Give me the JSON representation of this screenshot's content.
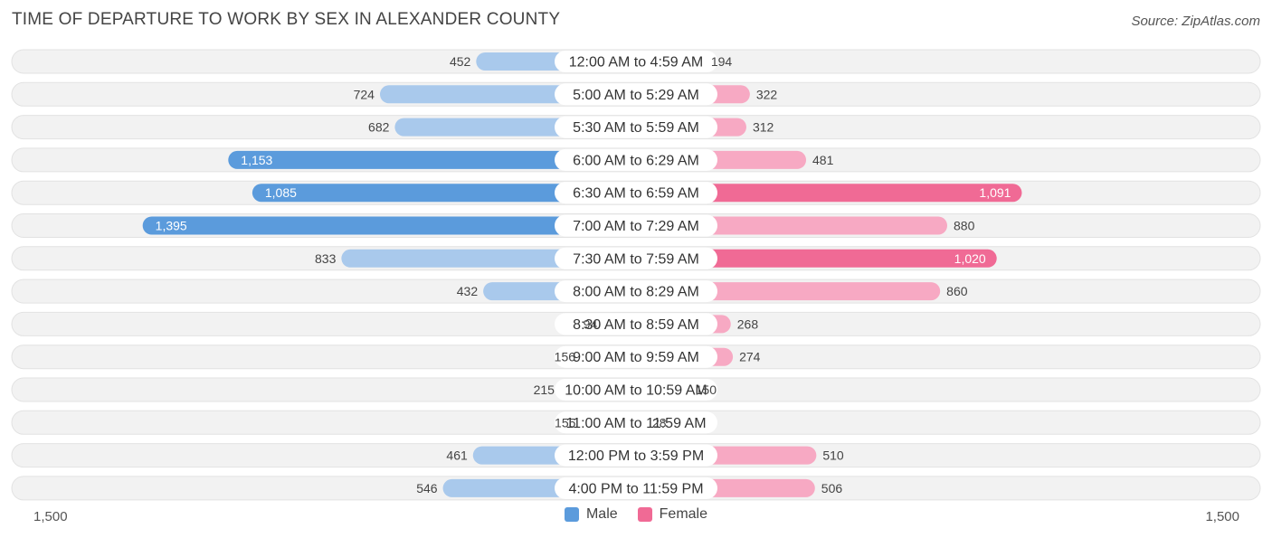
{
  "chart_data": {
    "type": "bar",
    "orientation": "horizontal-diverging",
    "title": "TIME OF DEPARTURE TO WORK BY SEX IN ALEXANDER COUNTY",
    "source": "Source: ZipAtlas.com",
    "categories": [
      "12:00 AM to 4:59 AM",
      "5:00 AM to 5:29 AM",
      "5:30 AM to 5:59 AM",
      "6:00 AM to 6:29 AM",
      "6:30 AM to 6:59 AM",
      "7:00 AM to 7:29 AM",
      "7:30 AM to 7:59 AM",
      "8:00 AM to 8:29 AM",
      "8:30 AM to 8:59 AM",
      "9:00 AM to 9:59 AM",
      "10:00 AM to 10:59 AM",
      "11:00 AM to 11:59 AM",
      "12:00 PM to 3:59 PM",
      "4:00 PM to 11:59 PM"
    ],
    "series": [
      {
        "name": "Male",
        "values": [
          452,
          724,
          682,
          1153,
          1085,
          1395,
          833,
          432,
          94,
          156,
          215,
          155,
          461,
          546
        ]
      },
      {
        "name": "Female",
        "values": [
          194,
          322,
          312,
          481,
          1091,
          880,
          1020,
          860,
          268,
          274,
          150,
          28,
          510,
          506
        ]
      }
    ],
    "value_labels": {
      "Male": [
        "452",
        "724",
        "682",
        "1,153",
        "1,085",
        "1,395",
        "833",
        "432",
        "94",
        "156",
        "215",
        "155",
        "461",
        "546"
      ],
      "Female": [
        "194",
        "322",
        "312",
        "481",
        "1,091",
        "880",
        "1,020",
        "860",
        "268",
        "274",
        "150",
        "28",
        "510",
        "506"
      ]
    },
    "axis": {
      "max": 1500,
      "left_tick_label": "1,500",
      "right_tick_label": "1,500"
    },
    "legend": {
      "position": "bottom-center",
      "items": [
        "Male",
        "Female"
      ]
    },
    "colors": {
      "male_strong": "#5b9bdc",
      "male_light": "#a9c9ec",
      "female_strong": "#f06a95",
      "female_light": "#f7a9c3",
      "row_bg": "#f2f2f2",
      "row_border": "#e2e2e2"
    },
    "grid": false
  }
}
